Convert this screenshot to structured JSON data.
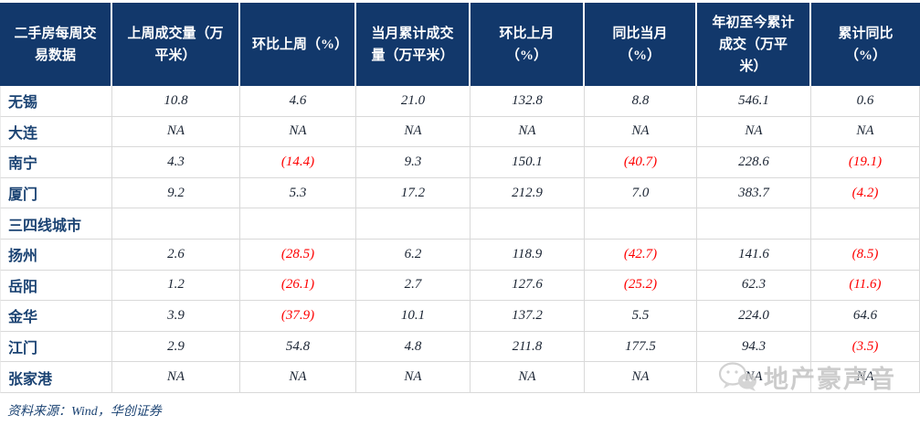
{
  "colors": {
    "header_bg": "#12386B",
    "header_text": "#FFFFFF",
    "row_label_text": "#1B4373",
    "value_text": "#1A2433",
    "negative_value_text": "#FE0000",
    "gridline": "#D9D9D9",
    "watermark_gray": "#C2C2C2"
  },
  "table": {
    "title_cell": "二手房每周交易数据",
    "columns": [
      "上周成交量（万平米）",
      "环比上周（%）",
      "当月累计成交量（万平米）",
      "环比上月（%）",
      "同比当月（%）",
      "年初至今累计成交（万平米）",
      "累计同比（%）"
    ],
    "rows": [
      {
        "label": "无锡",
        "section": false,
        "cells": [
          {
            "v": "10.8"
          },
          {
            "v": "4.6"
          },
          {
            "v": "21.0"
          },
          {
            "v": "132.8"
          },
          {
            "v": "8.8"
          },
          {
            "v": "546.1"
          },
          {
            "v": "0.6"
          }
        ]
      },
      {
        "label": "大连",
        "section": false,
        "cells": [
          {
            "v": "NA"
          },
          {
            "v": "NA"
          },
          {
            "v": "NA"
          },
          {
            "v": "NA"
          },
          {
            "v": "NA"
          },
          {
            "v": "NA"
          },
          {
            "v": "NA"
          }
        ]
      },
      {
        "label": "南宁",
        "section": false,
        "cells": [
          {
            "v": "4.3"
          },
          {
            "v": "(14.4)",
            "neg": true
          },
          {
            "v": "9.3"
          },
          {
            "v": "150.1"
          },
          {
            "v": "(40.7)",
            "neg": true
          },
          {
            "v": "228.6"
          },
          {
            "v": "(19.1)",
            "neg": true
          }
        ]
      },
      {
        "label": "厦门",
        "section": false,
        "cells": [
          {
            "v": "9.2"
          },
          {
            "v": "5.3"
          },
          {
            "v": "17.2"
          },
          {
            "v": "212.9"
          },
          {
            "v": "7.0"
          },
          {
            "v": "383.7"
          },
          {
            "v": "(4.2)",
            "neg": true
          }
        ]
      },
      {
        "label": "三四线城市",
        "section": true,
        "cells": [
          {
            "v": ""
          },
          {
            "v": ""
          },
          {
            "v": ""
          },
          {
            "v": ""
          },
          {
            "v": ""
          },
          {
            "v": ""
          },
          {
            "v": ""
          }
        ]
      },
      {
        "label": "扬州",
        "section": false,
        "cells": [
          {
            "v": "2.6"
          },
          {
            "v": "(28.5)",
            "neg": true
          },
          {
            "v": "6.2"
          },
          {
            "v": "118.9"
          },
          {
            "v": "(42.7)",
            "neg": true
          },
          {
            "v": "141.6"
          },
          {
            "v": "(8.5)",
            "neg": true
          }
        ]
      },
      {
        "label": "岳阳",
        "section": false,
        "cells": [
          {
            "v": "1.2"
          },
          {
            "v": "(26.1)",
            "neg": true
          },
          {
            "v": "2.7"
          },
          {
            "v": "127.6"
          },
          {
            "v": "(25.2)",
            "neg": true
          },
          {
            "v": "62.3"
          },
          {
            "v": "(11.6)",
            "neg": true
          }
        ]
      },
      {
        "label": "金华",
        "section": false,
        "cells": [
          {
            "v": "3.9"
          },
          {
            "v": "(37.9)",
            "neg": true
          },
          {
            "v": "10.1"
          },
          {
            "v": "137.2"
          },
          {
            "v": "5.5"
          },
          {
            "v": "224.0"
          },
          {
            "v": "64.6"
          }
        ]
      },
      {
        "label": "江门",
        "section": false,
        "cells": [
          {
            "v": "2.9"
          },
          {
            "v": "54.8"
          },
          {
            "v": "4.8"
          },
          {
            "v": "211.8"
          },
          {
            "v": "177.5"
          },
          {
            "v": "94.3"
          },
          {
            "v": "(3.5)",
            "neg": true
          }
        ]
      },
      {
        "label": "张家港",
        "section": false,
        "cells": [
          {
            "v": "NA"
          },
          {
            "v": "NA"
          },
          {
            "v": "NA"
          },
          {
            "v": "NA"
          },
          {
            "v": "NA"
          },
          {
            "v": "NA"
          },
          {
            "v": "NA"
          }
        ]
      }
    ]
  },
  "footer": {
    "source": "资料来源：Wind，华创证券"
  },
  "watermark": {
    "text": "地产豪声音",
    "icon": "wechat-icon"
  }
}
